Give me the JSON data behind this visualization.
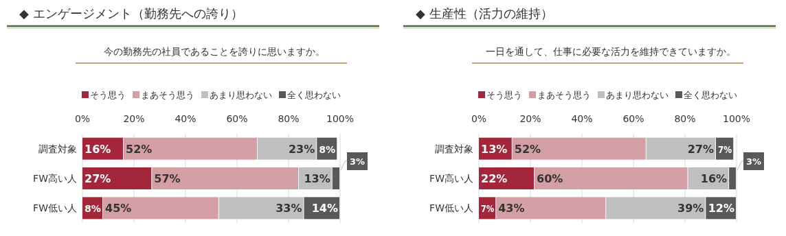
{
  "chart_data": [
    {
      "type": "bar",
      "orientation": "horizontal",
      "stacked": true,
      "title": "◆ エンゲージメント（勤務先への誇り）",
      "subtitle": "今の勤務先の社員であることを誇りに思いますか。",
      "categories": [
        "調査対象",
        "FW高い人",
        "FW低い人"
      ],
      "series": [
        {
          "name": "そう思う",
          "color": "#a3263a",
          "values": [
            16,
            27,
            8
          ],
          "value_labels": [
            "16%",
            "27%",
            "8%"
          ]
        },
        {
          "name": "まあそう思う",
          "color": "#d49ea5",
          "values": [
            52,
            57,
            45
          ],
          "value_labels": [
            "52%",
            "57%",
            "45%"
          ]
        },
        {
          "name": "あまり思わない",
          "color": "#bfbfbf",
          "values": [
            23,
            13,
            33
          ],
          "value_labels": [
            "23%",
            "13%",
            "33%"
          ]
        },
        {
          "name": "全く思わない",
          "color": "#595959",
          "values": [
            8,
            3,
            14
          ],
          "value_labels": [
            "8%",
            "3%",
            "14%"
          ]
        }
      ],
      "xlim": [
        0,
        100
      ],
      "xticks": [
        {
          "value": 0,
          "label": "0%"
        },
        {
          "value": 20,
          "label": "20%"
        },
        {
          "value": 40,
          "label": "40%"
        },
        {
          "value": 60,
          "label": "60%"
        },
        {
          "value": 80,
          "label": "80%"
        },
        {
          "value": 100,
          "label": "100%"
        }
      ],
      "grid": "x",
      "legend": "top"
    },
    {
      "type": "bar",
      "orientation": "horizontal",
      "stacked": true,
      "title": "◆ 生産性（活力の維持）",
      "subtitle": "一日を通して、仕事に必要な活力を維持できていますか。",
      "categories": [
        "調査対象",
        "FW高い人",
        "FW低い人"
      ],
      "series": [
        {
          "name": "そう思う",
          "color": "#a3263a",
          "values": [
            13,
            21.6,
            6.7
          ],
          "value_labels": [
            "13%",
            "22%",
            "7%"
          ]
        },
        {
          "name": "まあそう思う",
          "color": "#d49ea5",
          "values": [
            52,
            59.6,
            42.7
          ],
          "value_labels": [
            "52%",
            "60%",
            "43%"
          ]
        },
        {
          "name": "あまり思わない",
          "color": "#bfbfbf",
          "values": [
            27,
            15.9,
            38.7
          ],
          "value_labels": [
            "27%",
            "16%",
            "39%"
          ]
        },
        {
          "name": "全く思わない",
          "color": "#595959",
          "values": [
            7,
            2.9,
            11.9
          ],
          "value_labels": [
            "7%",
            "3%",
            "12%"
          ]
        }
      ],
      "xlim": [
        0,
        100
      ],
      "xticks": [
        {
          "value": 0,
          "label": "0%"
        },
        {
          "value": 20,
          "label": "20%"
        },
        {
          "value": 40,
          "label": "40%"
        },
        {
          "value": 60,
          "label": "60%"
        },
        {
          "value": 80,
          "label": "80%"
        },
        {
          "value": 100,
          "label": "100%"
        }
      ],
      "grid": "x",
      "legend": "top"
    }
  ]
}
